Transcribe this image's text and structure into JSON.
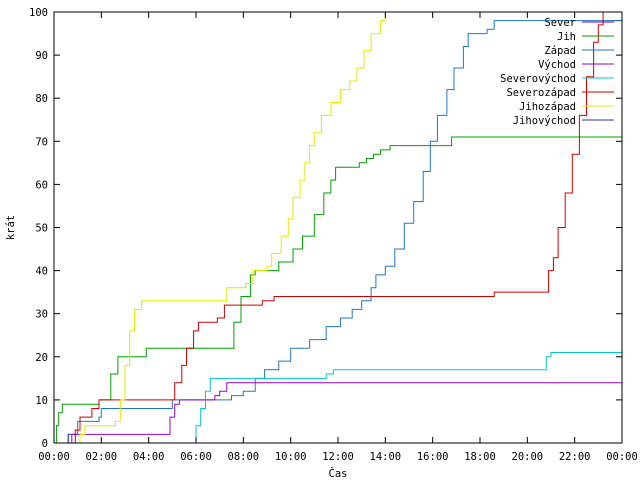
{
  "chart_data": {
    "type": "line",
    "xlabel": "Čas",
    "ylabel": "krát",
    "xlim": [
      0,
      24
    ],
    "ylim": [
      0,
      100
    ],
    "grid": false,
    "legend": "top-right",
    "x_ticks": [
      {
        "v": 0,
        "label": "00:00"
      },
      {
        "v": 2,
        "label": "02:00"
      },
      {
        "v": 4,
        "label": "04:00"
      },
      {
        "v": 6,
        "label": "06:00"
      },
      {
        "v": 8,
        "label": "08:00"
      },
      {
        "v": 10,
        "label": "10:00"
      },
      {
        "v": 12,
        "label": "12:00"
      },
      {
        "v": 14,
        "label": "14:00"
      },
      {
        "v": 16,
        "label": "16:00"
      },
      {
        "v": 18,
        "label": "18:00"
      },
      {
        "v": 20,
        "label": "20:00"
      },
      {
        "v": 22,
        "label": "22:00"
      },
      {
        "v": 24,
        "label": "00:00"
      }
    ],
    "y_ticks": [
      0,
      10,
      20,
      30,
      40,
      50,
      60,
      70,
      80,
      90,
      100
    ],
    "series": [
      {
        "name": "Sever",
        "color": "#8b008b",
        "step": true,
        "points": [
          [
            23.6,
            98
          ],
          [
            24,
            100
          ]
        ]
      },
      {
        "name": "Jih",
        "color": "#00a000",
        "step": true,
        "points": [
          [
            0,
            0
          ],
          [
            0.1,
            4
          ],
          [
            0.2,
            7
          ],
          [
            0.35,
            9
          ],
          [
            1.9,
            10
          ],
          [
            2.4,
            16
          ],
          [
            2.7,
            20
          ],
          [
            3.9,
            22
          ],
          [
            7.3,
            22
          ],
          [
            7.6,
            28
          ],
          [
            7.9,
            34
          ],
          [
            8.3,
            39
          ],
          [
            8.5,
            40
          ],
          [
            9.5,
            42
          ],
          [
            10.1,
            45
          ],
          [
            10.5,
            48
          ],
          [
            11.0,
            53
          ],
          [
            11.4,
            58
          ],
          [
            11.7,
            61
          ],
          [
            11.9,
            64
          ],
          [
            12.9,
            65
          ],
          [
            13.2,
            66
          ],
          [
            13.5,
            67
          ],
          [
            13.8,
            68
          ],
          [
            14.2,
            69
          ],
          [
            16.8,
            71
          ],
          [
            24,
            71
          ]
        ]
      },
      {
        "name": "Západ",
        "color": "#1f77c4",
        "step": true,
        "points": [
          [
            0.5,
            0
          ],
          [
            0.6,
            2
          ],
          [
            1.0,
            5
          ],
          [
            1.9,
            6
          ],
          [
            2.0,
            8
          ],
          [
            4.7,
            8
          ],
          [
            5.0,
            10
          ],
          [
            7.5,
            11
          ],
          [
            8.0,
            12
          ],
          [
            8.5,
            15
          ],
          [
            8.9,
            17
          ],
          [
            9.5,
            19
          ],
          [
            10.0,
            22
          ],
          [
            10.8,
            24
          ],
          [
            11.5,
            27
          ],
          [
            12.1,
            29
          ],
          [
            12.6,
            31
          ],
          [
            13.0,
            33
          ],
          [
            13.4,
            36
          ],
          [
            13.6,
            39
          ],
          [
            14.0,
            41
          ],
          [
            14.4,
            45
          ],
          [
            14.8,
            51
          ],
          [
            15.2,
            56
          ],
          [
            15.6,
            63
          ],
          [
            15.9,
            70
          ],
          [
            16.2,
            76
          ],
          [
            16.6,
            82
          ],
          [
            16.9,
            87
          ],
          [
            17.3,
            92
          ],
          [
            17.5,
            95
          ],
          [
            18.3,
            96
          ],
          [
            18.6,
            98
          ],
          [
            24,
            98
          ]
        ]
      },
      {
        "name": "Východ",
        "color": "#9400d3",
        "step": true,
        "points": [
          [
            0.7,
            0
          ],
          [
            0.75,
            2
          ],
          [
            4.7,
            2
          ],
          [
            4.9,
            6
          ],
          [
            5.1,
            9
          ],
          [
            5.3,
            10
          ],
          [
            6.8,
            11
          ],
          [
            7.0,
            12
          ],
          [
            7.3,
            14
          ],
          [
            24,
            14
          ]
        ]
      },
      {
        "name": "Severovýchod",
        "color": "#00c8c8",
        "step": true,
        "points": [
          [
            5.9,
            0
          ],
          [
            6.0,
            4
          ],
          [
            6.2,
            8
          ],
          [
            6.4,
            12
          ],
          [
            6.6,
            15
          ],
          [
            11.5,
            16
          ],
          [
            11.8,
            17
          ],
          [
            20.6,
            17
          ],
          [
            20.8,
            20
          ],
          [
            21.0,
            21
          ],
          [
            24,
            21
          ]
        ]
      },
      {
        "name": "Severozápad",
        "color": "#d00000",
        "step": true,
        "points": [
          [
            0.8,
            0
          ],
          [
            0.9,
            3
          ],
          [
            1.1,
            6
          ],
          [
            1.6,
            8
          ],
          [
            1.9,
            10
          ],
          [
            4.9,
            10
          ],
          [
            5.1,
            14
          ],
          [
            5.4,
            18
          ],
          [
            5.6,
            22
          ],
          [
            5.9,
            26
          ],
          [
            6.1,
            28
          ],
          [
            6.9,
            29
          ],
          [
            7.2,
            32
          ],
          [
            8.8,
            33
          ],
          [
            9.3,
            34
          ],
          [
            18.6,
            35
          ],
          [
            20.6,
            35
          ],
          [
            20.9,
            40
          ],
          [
            21.1,
            43
          ],
          [
            21.3,
            50
          ],
          [
            21.6,
            58
          ],
          [
            21.9,
            67
          ],
          [
            22.2,
            76
          ],
          [
            22.5,
            85
          ],
          [
            22.8,
            93
          ],
          [
            23.0,
            97
          ],
          [
            23.2,
            100
          ]
        ]
      },
      {
        "name": "Jihozápad",
        "color": "#e8e800",
        "step": true,
        "points": [
          [
            1.0,
            0
          ],
          [
            1.1,
            2
          ],
          [
            1.3,
            4
          ],
          [
            2.6,
            5
          ],
          [
            2.8,
            10
          ],
          [
            3.0,
            18
          ],
          [
            3.2,
            26
          ],
          [
            3.4,
            31
          ],
          [
            3.7,
            33
          ],
          [
            7.1,
            33
          ],
          [
            7.3,
            36
          ],
          [
            8.1,
            37
          ],
          [
            8.4,
            40
          ],
          [
            9.0,
            41
          ],
          [
            9.2,
            44
          ],
          [
            9.6,
            48
          ],
          [
            9.9,
            52
          ],
          [
            10.1,
            57
          ],
          [
            10.4,
            61
          ],
          [
            10.6,
            65
          ],
          [
            10.8,
            69
          ],
          [
            11.0,
            72
          ],
          [
            11.3,
            76
          ],
          [
            11.7,
            79
          ],
          [
            12.1,
            82
          ],
          [
            12.5,
            84
          ],
          [
            12.8,
            87
          ],
          [
            13.1,
            91
          ],
          [
            13.4,
            95
          ],
          [
            13.8,
            98
          ],
          [
            14.0,
            100
          ]
        ]
      },
      {
        "name": "Jihovýchod",
        "color": "#3030c0",
        "step": true,
        "points": [
          [
            0.55,
            0
          ],
          [
            0.6,
            2
          ],
          [
            0.7,
            2
          ]
        ]
      }
    ]
  }
}
